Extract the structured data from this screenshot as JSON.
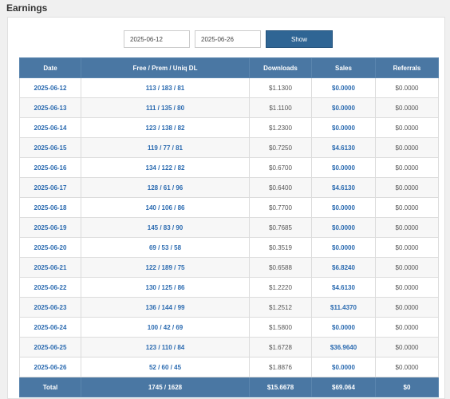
{
  "page_title": "Earnings",
  "filters": {
    "start_date": "2025-06-12",
    "end_date": "2025-06-26",
    "show_label": "Show"
  },
  "table": {
    "headers": [
      "Date",
      "Free / Prem / Uniq DL",
      "Downloads",
      "Sales",
      "Referrals"
    ],
    "rows": [
      [
        "2025-06-12",
        "113 / 183 / 81",
        "$1.1300",
        "$0.0000",
        "$0.0000"
      ],
      [
        "2025-06-13",
        "111 / 135 / 80",
        "$1.1100",
        "$0.0000",
        "$0.0000"
      ],
      [
        "2025-06-14",
        "123 / 138 / 82",
        "$1.2300",
        "$0.0000",
        "$0.0000"
      ],
      [
        "2025-06-15",
        "119 / 77 / 81",
        "$0.7250",
        "$4.6130",
        "$0.0000"
      ],
      [
        "2025-06-16",
        "134 / 122 / 82",
        "$0.6700",
        "$0.0000",
        "$0.0000"
      ],
      [
        "2025-06-17",
        "128 / 61 / 96",
        "$0.6400",
        "$4.6130",
        "$0.0000"
      ],
      [
        "2025-06-18",
        "140 / 106 / 86",
        "$0.7700",
        "$0.0000",
        "$0.0000"
      ],
      [
        "2025-06-19",
        "145 / 83 / 90",
        "$0.7685",
        "$0.0000",
        "$0.0000"
      ],
      [
        "2025-06-20",
        "69 / 53 / 58",
        "$0.3519",
        "$0.0000",
        "$0.0000"
      ],
      [
        "2025-06-21",
        "122 / 189 / 75",
        "$0.6588",
        "$6.8240",
        "$0.0000"
      ],
      [
        "2025-06-22",
        "130 / 125 / 86",
        "$1.2220",
        "$4.6130",
        "$0.0000"
      ],
      [
        "2025-06-23",
        "136 / 144 / 99",
        "$1.2512",
        "$11.4370",
        "$0.0000"
      ],
      [
        "2025-06-24",
        "100 / 42 / 69",
        "$1.5800",
        "$0.0000",
        "$0.0000"
      ],
      [
        "2025-06-25",
        "123 / 110 / 84",
        "$1.6728",
        "$36.9640",
        "$0.0000"
      ],
      [
        "2025-06-26",
        "52 / 60 / 45",
        "$1.8876",
        "$0.0000",
        "$0.0000"
      ]
    ],
    "footer": [
      "Total",
      "1745 / 1628",
      "$15.6678",
      "$69.064",
      "$0"
    ]
  }
}
